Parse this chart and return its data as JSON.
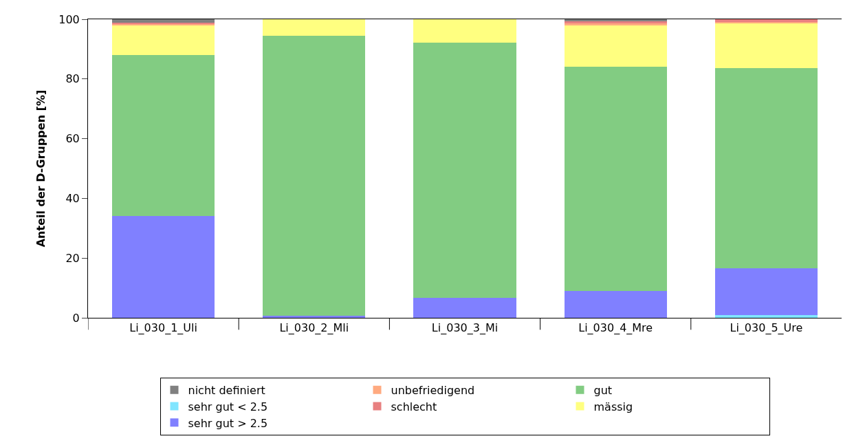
{
  "chart_data": {
    "type": "bar",
    "stacked": true,
    "ylabel": "Anteil der D-Gruppen [%]",
    "categories": [
      "Li_030_1_Uli",
      "Li_030_2_Mli",
      "Li_030_3_Mi",
      "Li_030_4_Mre",
      "Li_030_5_Ure"
    ],
    "series": [
      {
        "name": "sehr gut < 2.5",
        "color": "#80e5ff",
        "values": [
          0,
          0,
          0,
          0,
          1.0
        ]
      },
      {
        "name": "sehr gut > 2.5",
        "color": "#8080ff",
        "values": [
          34.1,
          0.8,
          6.7,
          9.0,
          15.6
        ]
      },
      {
        "name": "gut",
        "color": "#82cc82",
        "values": [
          53.9,
          93.7,
          85.5,
          75.1,
          67.0
        ]
      },
      {
        "name": "mässig",
        "color": "#ffff80",
        "values": [
          9.9,
          5.5,
          7.8,
          13.8,
          15.2
        ]
      },
      {
        "name": "unbefriedigend",
        "color": "#ffaa80",
        "values": [
          0.6,
          0,
          0,
          0.8,
          0.2
        ]
      },
      {
        "name": "schlecht",
        "color": "#e88080",
        "values": [
          0.3,
          0,
          0,
          0.6,
          1.0
        ]
      },
      {
        "name": "nicht definiert",
        "color": "#808080",
        "values": [
          1.2,
          0,
          0,
          0.7,
          0
        ]
      }
    ],
    "ylim": [
      0,
      100
    ],
    "yticks": [
      0,
      20,
      40,
      60,
      80,
      100
    ],
    "grid": false,
    "legend": "bottom"
  }
}
